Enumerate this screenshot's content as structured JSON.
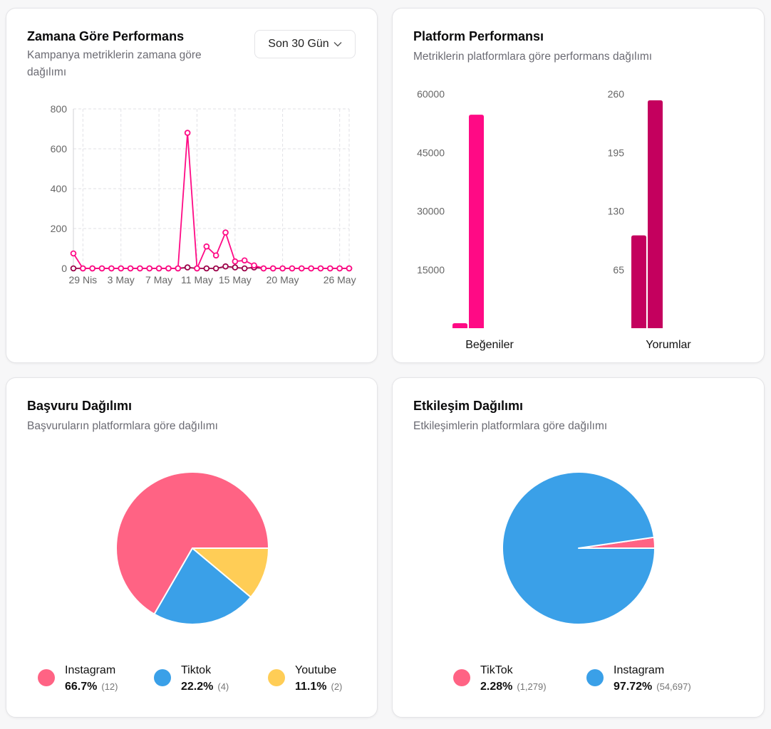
{
  "cards": {
    "time": {
      "title": "Zamana Göre Performans",
      "subtitle_line1": "Kampanya metriklerin zamana göre",
      "subtitle_line2": "dağılımı",
      "dropdown": "Son 30 Gün"
    },
    "platform": {
      "title": "Platform Performansı",
      "subtitle": "Metriklerin platformlara göre performans dağılımı"
    },
    "apply": {
      "title": "Başvuru Dağılımı",
      "subtitle": "Başvuruların platformlara göre dağılımı"
    },
    "engage": {
      "title": "Etkileşim Dağılımı",
      "subtitle": "Etkileşimlerin platformlara göre dağılımı"
    }
  },
  "colors": {
    "pink": "#ff0a85",
    "dark": "#9b0048",
    "magenta": "#c4005e",
    "instagram": "#ff6384",
    "tiktok": "#3aa0e8",
    "youtube": "#ffcd56",
    "grid": "#e2e2e6"
  },
  "chart_data": [
    {
      "type": "line",
      "title": "Zamana Göre Performans",
      "x_tick_labels": [
        "29 Nis",
        "3 May",
        "7 May",
        "11 May",
        "15 May",
        "20 May",
        "26 May"
      ],
      "x_tick_positions": [
        1,
        5,
        9,
        13,
        17,
        22,
        28
      ],
      "ylim": [
        0,
        800
      ],
      "y_ticks": [
        0,
        200,
        400,
        600,
        800
      ],
      "series": [
        {
          "name": "pink",
          "values": [
            75,
            0,
            0,
            0,
            0,
            0,
            0,
            0,
            0,
            0,
            0,
            0,
            680,
            0,
            110,
            65,
            180,
            35,
            40,
            15,
            0,
            0,
            0,
            0,
            0,
            0,
            0,
            0,
            0,
            0
          ]
        },
        {
          "name": "dark",
          "values": [
            0,
            0,
            0,
            0,
            0,
            0,
            0,
            0,
            0,
            0,
            0,
            0,
            5,
            0,
            0,
            0,
            10,
            5,
            0,
            5,
            0,
            0,
            0,
            0,
            0,
            0,
            0,
            0,
            0,
            0
          ]
        }
      ]
    },
    {
      "type": "bar",
      "title": "Beğeniler",
      "ylim": [
        0,
        60000
      ],
      "y_ticks": [
        15000,
        30000,
        45000,
        60000
      ],
      "y_tick_labels": [
        "15000",
        "30000",
        "45000",
        "60000"
      ],
      "values": [
        1279,
        54697
      ]
    },
    {
      "type": "bar",
      "title": "Yorumlar",
      "ylim": [
        0,
        260
      ],
      "y_ticks": [
        65,
        130,
        195,
        260
      ],
      "y_tick_labels": [
        "65",
        "130",
        "195",
        "260"
      ],
      "values": [
        103,
        253
      ]
    },
    {
      "type": "pie",
      "title": "Başvuru Dağılımı",
      "slices": [
        {
          "label": "Instagram",
          "pct_text": "66.7%",
          "count_text": "(12)",
          "value": 12,
          "color": "#ff6384"
        },
        {
          "label": "Tiktok",
          "pct_text": "22.2%",
          "count_text": "(4)",
          "value": 4,
          "color": "#3aa0e8"
        },
        {
          "label": "Youtube",
          "pct_text": "11.1%",
          "count_text": "(2)",
          "value": 2,
          "color": "#ffcd56"
        }
      ]
    },
    {
      "type": "pie",
      "title": "Etkileşim Dağılımı",
      "slices": [
        {
          "label": "TikTok",
          "pct_text": "2.28%",
          "count_text": "(1,279)",
          "value": 1279,
          "color": "#ff6384"
        },
        {
          "label": "Instagram",
          "pct_text": "97.72%",
          "count_text": "(54,697)",
          "value": 54697,
          "color": "#3aa0e8"
        }
      ]
    }
  ]
}
